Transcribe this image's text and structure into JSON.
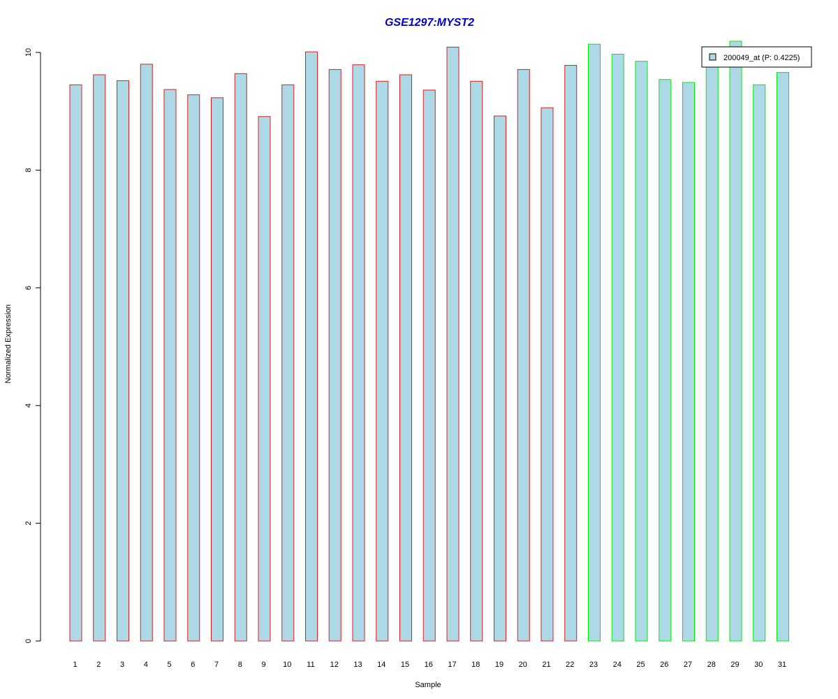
{
  "chart_data": {
    "type": "bar",
    "title": "GSE1297:MYST2",
    "xlabel": "Sample",
    "ylabel": "Normalized Expression",
    "categories": [
      "1",
      "2",
      "3",
      "4",
      "5",
      "6",
      "7",
      "8",
      "9",
      "10",
      "11",
      "12",
      "13",
      "14",
      "15",
      "16",
      "17",
      "18",
      "19",
      "20",
      "21",
      "22",
      "23",
      "24",
      "25",
      "26",
      "27",
      "28",
      "29",
      "30",
      "31"
    ],
    "values": [
      9.45,
      9.62,
      9.52,
      9.8,
      9.37,
      9.28,
      9.23,
      9.64,
      8.91,
      9.45,
      10.01,
      9.71,
      9.79,
      9.51,
      9.62,
      9.36,
      10.09,
      9.51,
      8.92,
      9.71,
      9.06,
      9.78,
      10.14,
      9.97,
      9.85,
      9.54,
      9.49,
      9.81,
      10.19,
      9.45,
      9.66
    ],
    "groups": [
      1,
      1,
      1,
      1,
      1,
      1,
      1,
      1,
      1,
      1,
      1,
      1,
      1,
      1,
      1,
      1,
      1,
      1,
      1,
      1,
      1,
      1,
      2,
      2,
      2,
      2,
      2,
      2,
      2,
      2,
      2
    ],
    "group_border_colors": {
      "1": "#e41a1c",
      "2": "#00ee00"
    },
    "bar_fill_color": "#add8e6",
    "title_color": "#0000cd",
    "ylim": [
      0,
      10
    ],
    "yticks": [
      0,
      2,
      4,
      6,
      8,
      10
    ],
    "grid": false,
    "legend": {
      "placement": "top-right",
      "entries": [
        {
          "label": "200049_at (P: 0.4225)",
          "color": "#add8e6"
        }
      ]
    }
  }
}
